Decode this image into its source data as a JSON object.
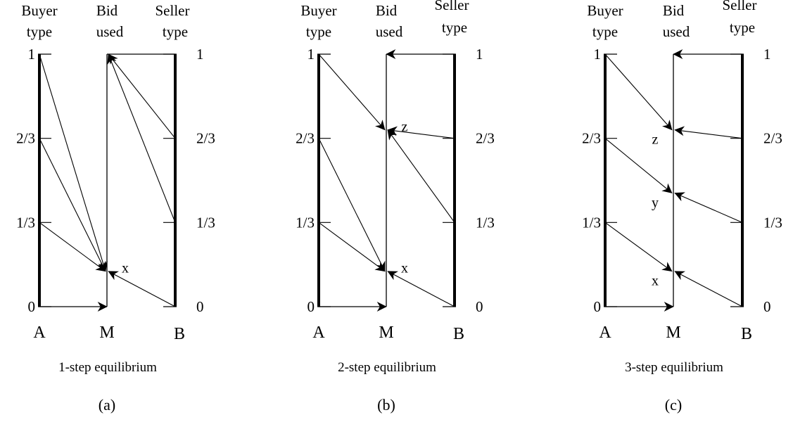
{
  "headers": {
    "buyer": [
      "Buyer",
      "type"
    ],
    "bid": [
      "Bid",
      "used"
    ],
    "seller": [
      "Seller",
      "type"
    ]
  },
  "ticks": {
    "left": [
      "0",
      "1/3",
      "2/3",
      "1"
    ],
    "right": [
      "0",
      "1/3",
      "2/3",
      "1"
    ]
  },
  "letters": {
    "buyer": "A",
    "mid": "M",
    "seller": "B"
  },
  "panels": [
    {
      "caption": "1-step equilibrium",
      "sub": "(a)",
      "equilibria": [
        {
          "label": "x",
          "bid": 0.14,
          "label_side": "right"
        }
      ],
      "arrows": [
        {
          "from": [
            "buyer",
            1
          ],
          "to": 0,
          "side": "left"
        },
        {
          "from": [
            "buyer",
            0.6667
          ],
          "to": 0,
          "side": "left"
        },
        {
          "from": [
            "buyer",
            0.3333
          ],
          "to": 0,
          "side": "left"
        },
        {
          "from": [
            "seller",
            0
          ],
          "to": 0,
          "side": "right"
        },
        {
          "from": [
            "seller",
            0.3333
          ],
          "to": 1.0,
          "side": "right"
        },
        {
          "from": [
            "seller",
            0.6667
          ],
          "to": 1.0,
          "side": "right"
        }
      ],
      "flat_bottom": true,
      "flat_top": false
    },
    {
      "caption": "2-step equilibrium",
      "sub": "(b)",
      "equilibria": [
        {
          "label": "x",
          "bid": 0.14,
          "label_side": "right"
        },
        {
          "label": "z",
          "bid": 0.7,
          "label_side": "right"
        }
      ],
      "arrows": [
        {
          "from": [
            "buyer",
            1
          ],
          "to": 1,
          "side": "left"
        },
        {
          "from": [
            "buyer",
            0.6667
          ],
          "to": 0,
          "side": "left"
        },
        {
          "from": [
            "buyer",
            0.3333
          ],
          "to": 0,
          "side": "left"
        },
        {
          "from": [
            "seller",
            0
          ],
          "to": 0,
          "side": "right"
        },
        {
          "from": [
            "seller",
            0.3333
          ],
          "to": 1,
          "side": "right"
        },
        {
          "from": [
            "seller",
            0.6667
          ],
          "to": 1,
          "side": "right"
        }
      ],
      "flat_bottom": true,
      "flat_top": true
    },
    {
      "caption": "3-step equilibrium",
      "sub": "(c)",
      "equilibria": [
        {
          "label": "x",
          "bid": 0.14,
          "label_side": "left"
        },
        {
          "label": "y",
          "bid": 0.45,
          "label_side": "left"
        },
        {
          "label": "z",
          "bid": 0.7,
          "label_side": "left"
        }
      ],
      "arrows": [
        {
          "from": [
            "buyer",
            1
          ],
          "to": 2,
          "side": "left"
        },
        {
          "from": [
            "buyer",
            0.6667
          ],
          "to": 1,
          "side": "left"
        },
        {
          "from": [
            "buyer",
            0.3333
          ],
          "to": 0,
          "side": "left"
        },
        {
          "from": [
            "seller",
            0
          ],
          "to": 0,
          "side": "right"
        },
        {
          "from": [
            "seller",
            0.3333
          ],
          "to": 1,
          "side": "right"
        },
        {
          "from": [
            "seller",
            0.6667
          ],
          "to": 2,
          "side": "right"
        }
      ],
      "flat_bottom": true,
      "flat_top": true
    }
  ]
}
